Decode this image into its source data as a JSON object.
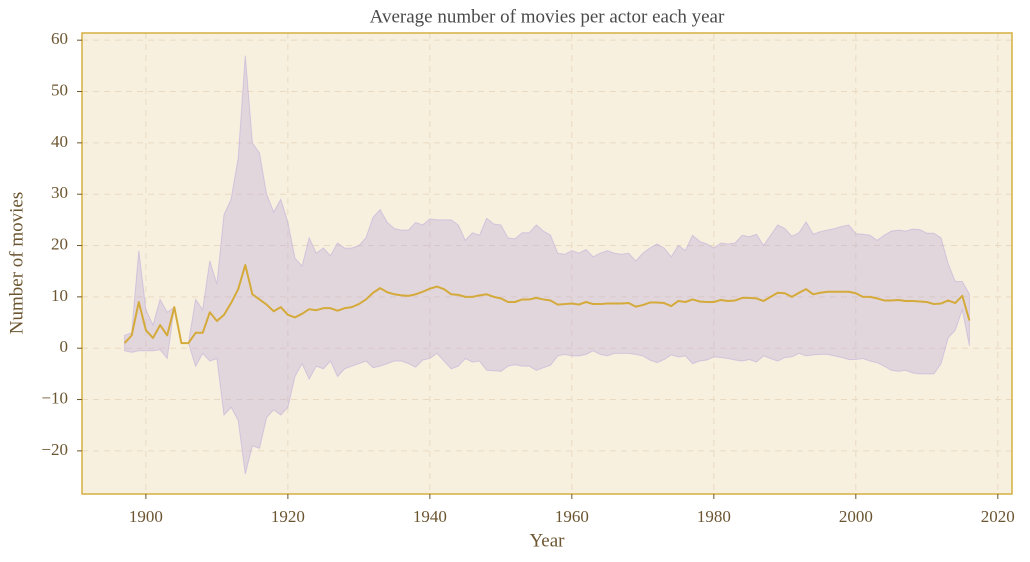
{
  "chart_data": {
    "type": "line-band",
    "title": "Average number of movies per actor each year",
    "x_label": "Year",
    "y_label": "Number of movies",
    "x": [
      1897,
      1898,
      1899,
      1900,
      1901,
      1902,
      1903,
      1904,
      1905,
      1906,
      1907,
      1908,
      1909,
      1910,
      1911,
      1912,
      1913,
      1914,
      1915,
      1916,
      1917,
      1918,
      1919,
      1920,
      1921,
      1922,
      1923,
      1924,
      1925,
      1926,
      1927,
      1928,
      1929,
      1930,
      1931,
      1932,
      1933,
      1934,
      1935,
      1936,
      1937,
      1938,
      1939,
      1940,
      1941,
      1942,
      1943,
      1944,
      1945,
      1946,
      1947,
      1948,
      1949,
      1950,
      1951,
      1952,
      1953,
      1954,
      1955,
      1956,
      1957,
      1958,
      1959,
      1960,
      1961,
      1962,
      1963,
      1964,
      1965,
      1966,
      1967,
      1968,
      1969,
      1970,
      1971,
      1972,
      1973,
      1974,
      1975,
      1976,
      1977,
      1978,
      1979,
      1980,
      1981,
      1982,
      1983,
      1984,
      1985,
      1986,
      1987,
      1988,
      1989,
      1990,
      1991,
      1992,
      1993,
      1994,
      1995,
      1996,
      1997,
      1998,
      1999,
      2000,
      2001,
      2002,
      2003,
      2004,
      2005,
      2006,
      2007,
      2008,
      2009,
      2010,
      2011,
      2012,
      2013,
      2014,
      2015,
      2016
    ],
    "line": {
      "color": "#d4aa3a",
      "values": [
        1,
        2.5,
        9,
        3.5,
        2,
        4.5,
        2.5,
        8,
        1,
        1,
        3,
        3,
        7,
        5.3,
        6.5,
        8.8,
        11.5,
        16.2,
        10.5,
        9.5,
        8.5,
        7.2,
        8,
        6.5,
        6,
        6.7,
        7.6,
        7.4,
        7.8,
        7.8,
        7.3,
        7.8,
        8,
        8.6,
        9.5,
        10.8,
        11.7,
        10.9,
        10.5,
        10.3,
        10.2,
        10.5,
        11,
        11.6,
        12,
        11.5,
        10.5,
        10.4,
        10,
        10,
        10.3,
        10.5,
        10,
        9.7,
        9,
        9,
        9.5,
        9.5,
        9.8,
        9.5,
        9.3,
        8.5,
        8.6,
        8.7,
        8.5,
        9,
        8.6,
        8.6,
        8.7,
        8.7,
        8.7,
        8.8,
        8.1,
        8.4,
        8.9,
        8.9,
        8.8,
        8.2,
        9.2,
        9,
        9.5,
        9.1,
        9,
        9,
        9.4,
        9.2,
        9.3,
        9.8,
        9.8,
        9.7,
        9.2,
        10,
        10.8,
        10.7,
        10,
        10.8,
        11.5,
        10.5,
        10.8,
        11,
        11,
        11,
        11,
        10.7,
        10,
        10,
        9.7,
        9.3,
        9.3,
        9.4,
        9.2,
        9.2,
        9.1,
        9,
        8.6,
        8.7,
        9.3,
        8.8,
        10.2,
        5.4
      ]
    },
    "band": {
      "color": "#b9a6d9",
      "upper": [
        2.5,
        3,
        19,
        7.5,
        4.5,
        9.5,
        7,
        8,
        1,
        1,
        9.5,
        7.5,
        17,
        12.5,
        26,
        29,
        37,
        57,
        40,
        38,
        30,
        26.5,
        29,
        24.5,
        17.5,
        16,
        21.5,
        18.5,
        19.5,
        18,
        20.5,
        19.5,
        19.5,
        20,
        21.5,
        25.5,
        27,
        24.5,
        23.3,
        23,
        23,
        24.5,
        24,
        25.2,
        25,
        25,
        25,
        24,
        21,
        22.5,
        22,
        25.3,
        24.2,
        24,
        21.5,
        21.3,
        22.5,
        22.5,
        24,
        22.8,
        22,
        18.5,
        18.3,
        19,
        18.5,
        19.2,
        17.8,
        18.5,
        19,
        18.5,
        18.3,
        18.5,
        17,
        18.5,
        19.5,
        20.3,
        19.5,
        17.8,
        20,
        19,
        22,
        20.8,
        20.3,
        19.5,
        20.5,
        20.3,
        20.5,
        22,
        21.7,
        22.2,
        20,
        22,
        24,
        23.3,
        21.8,
        22.5,
        24.6,
        22.2,
        22.7,
        23,
        23.3,
        23.7,
        24,
        22.3,
        22.2,
        22,
        21,
        22,
        22.8,
        23,
        22.8,
        23.2,
        23.1,
        22.4,
        22.4,
        21.5,
        16.5,
        13,
        13,
        10.5
      ],
      "lower": [
        -0.5,
        -0.8,
        -0.5,
        -0.5,
        -0.5,
        -0.3,
        -2,
        8,
        1,
        1,
        -3.5,
        -1,
        -2.5,
        -2,
        -13,
        -11.5,
        -14,
        -24.5,
        -19,
        -19.5,
        -13.5,
        -12,
        -13,
        -11.5,
        -5.5,
        -3,
        -6,
        -3.5,
        -4,
        -2.5,
        -5.5,
        -4,
        -3.5,
        -3,
        -2.5,
        -3.8,
        -3.5,
        -3,
        -2.5,
        -2.5,
        -3,
        -3.7,
        -2.3,
        -2,
        -1,
        -2.5,
        -4,
        -3.5,
        -2,
        -2.7,
        -2.5,
        -4.3,
        -4.4,
        -4.5,
        -3.5,
        -3.2,
        -3.5,
        -3.5,
        -4.3,
        -3.8,
        -3.3,
        -1.5,
        -1.2,
        -1.5,
        -1.5,
        -1.2,
        -0.5,
        -1.2,
        -1.5,
        -1,
        -1,
        -1,
        -1.2,
        -1.5,
        -2.3,
        -2.8,
        -2.2,
        -1.3,
        -1.7,
        -1.5,
        -3,
        -2.5,
        -2.3,
        -1.7,
        -1.8,
        -2,
        -2.3,
        -2.5,
        -2.2,
        -2.7,
        -1.5,
        -2,
        -2.5,
        -1.8,
        -1.7,
        -1,
        -1.5,
        -1.3,
        -1.2,
        -1.2,
        -1.5,
        -1.8,
        -2.2,
        -2.2,
        -2,
        -2.5,
        -2.8,
        -3.5,
        -4.3,
        -4.5,
        -4.3,
        -4.8,
        -5,
        -5,
        -5,
        -3,
        2,
        3.5,
        7.5,
        0.5
      ]
    },
    "xlim": [
      1891,
      2022
    ],
    "ylim": [
      -28.4,
      61.4
    ],
    "xticks": [
      1900,
      1920,
      1940,
      1960,
      1980,
      2000,
      2020
    ],
    "yticks": [
      {
        "value": -20,
        "label": "−20"
      },
      {
        "value": -10,
        "label": "−10"
      },
      0,
      10,
      20,
      30,
      40,
      50,
      60
    ],
    "grid": true
  }
}
